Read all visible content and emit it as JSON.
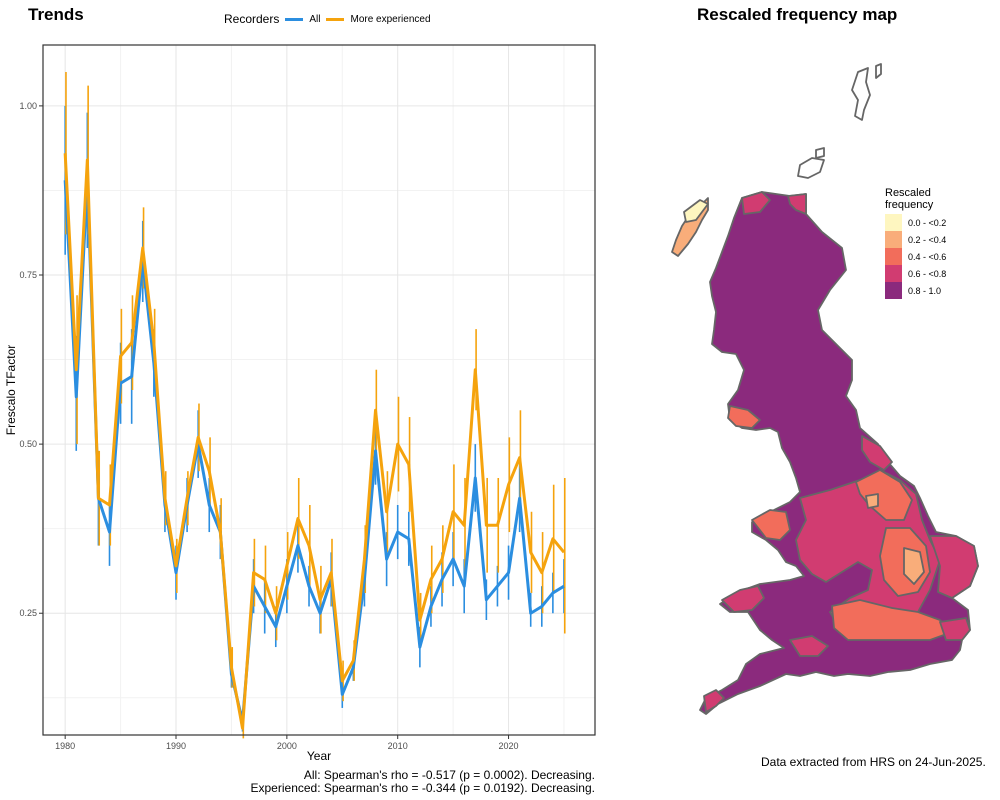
{
  "left_title": "Trends",
  "right_title": "Rescaled frequency map",
  "legend": {
    "title": "Recorders",
    "entries": [
      {
        "label": "All",
        "color": "#2b8ee0"
      },
      {
        "label": "More experienced",
        "color": "#f5a30d"
      }
    ]
  },
  "stats": {
    "line1": "All: Spearman's rho = -0.517 (p = 0.0002). Decreasing.",
    "line2": "Experienced: Spearman's rho = -0.344 (p = 0.0192). Decreasing."
  },
  "footer": "Data extracted from HRS on 24-Jun-2025.",
  "map_legend": {
    "title_line1": "Rescaled",
    "title_line2": "frequency",
    "bins": [
      {
        "label": "0.0 - <0.2",
        "color": "#fef6c0"
      },
      {
        "label": "0.2 - <0.4",
        "color": "#f9ad7a"
      },
      {
        "label": "0.4 - <0.6",
        "color": "#f26d5b"
      },
      {
        "label": "0.6 - <0.8",
        "color": "#d13c71"
      },
      {
        "label": "0.8 - 1.0",
        "color": "#8b2a7d"
      }
    ]
  },
  "chart_data": {
    "type": "line",
    "xlabel": "Year",
    "ylabel": "Frescalo TFactor",
    "xlim": [
      1978.0,
      2027.8
    ],
    "ylim": [
      0.07,
      1.09
    ],
    "xticks": [
      1980,
      1990,
      2000,
      2010,
      2020
    ],
    "yticks": [
      0.25,
      0.5,
      0.75,
      1.0
    ],
    "ytick_labels": [
      "0.25",
      "0.50",
      "0.75",
      "1.00"
    ],
    "grid": true,
    "legend_position": "top",
    "x": [
      1980,
      1981,
      1982,
      1983,
      1984,
      1985,
      1986,
      1987,
      1988,
      1989,
      1990,
      1991,
      1992,
      1993,
      1994,
      1995,
      1996,
      1997,
      1998,
      1999,
      2000,
      2001,
      2002,
      2003,
      2004,
      2005,
      2006,
      2007,
      2008,
      2009,
      2010,
      2011,
      2012,
      2013,
      2014,
      2015,
      2016,
      2017,
      2018,
      2019,
      2020,
      2021,
      2022,
      2023,
      2024,
      2025
    ],
    "series": [
      {
        "name": "All",
        "color": "#2b8ee0",
        "values": [
          0.89,
          0.57,
          0.89,
          0.42,
          0.37,
          0.59,
          0.6,
          0.77,
          0.62,
          0.41,
          0.31,
          0.41,
          0.5,
          0.41,
          0.37,
          0.16,
          0.09,
          0.29,
          0.26,
          0.23,
          0.29,
          0.35,
          0.29,
          0.25,
          0.3,
          0.13,
          0.17,
          0.3,
          0.49,
          0.33,
          0.37,
          0.36,
          0.2,
          0.26,
          0.3,
          0.33,
          0.29,
          0.45,
          0.27,
          0.29,
          0.31,
          0.42,
          0.25,
          0.26,
          0.28,
          0.29
        ],
        "lower": [
          0.78,
          0.49,
          0.79,
          0.35,
          0.32,
          0.53,
          0.53,
          0.71,
          0.57,
          0.37,
          0.27,
          0.37,
          0.45,
          0.37,
          0.33,
          0.14,
          0.075,
          0.25,
          0.22,
          0.2,
          0.25,
          0.31,
          0.26,
          0.22,
          0.26,
          0.11,
          0.15,
          0.26,
          0.44,
          0.29,
          0.33,
          0.32,
          0.17,
          0.23,
          0.26,
          0.29,
          0.25,
          0.4,
          0.24,
          0.26,
          0.27,
          0.37,
          0.23,
          0.23,
          0.25,
          0.25
        ],
        "upper": [
          1.0,
          0.66,
          0.99,
          0.49,
          0.42,
          0.65,
          0.67,
          0.83,
          0.67,
          0.45,
          0.35,
          0.45,
          0.55,
          0.45,
          0.41,
          0.18,
          0.105,
          0.33,
          0.3,
          0.26,
          0.33,
          0.39,
          0.32,
          0.28,
          0.34,
          0.15,
          0.19,
          0.34,
          0.54,
          0.37,
          0.41,
          0.4,
          0.23,
          0.29,
          0.34,
          0.37,
          0.33,
          0.5,
          0.3,
          0.32,
          0.35,
          0.47,
          0.28,
          0.29,
          0.31,
          0.33
        ]
      },
      {
        "name": "More experienced",
        "color": "#f5a30d",
        "values": [
          0.93,
          0.61,
          0.92,
          0.42,
          0.41,
          0.63,
          0.65,
          0.79,
          0.65,
          0.42,
          0.32,
          0.42,
          0.51,
          0.46,
          0.37,
          0.17,
          0.08,
          0.31,
          0.3,
          0.25,
          0.32,
          0.39,
          0.35,
          0.27,
          0.31,
          0.15,
          0.18,
          0.33,
          0.55,
          0.4,
          0.5,
          0.47,
          0.24,
          0.3,
          0.33,
          0.4,
          0.38,
          0.61,
          0.38,
          0.38,
          0.44,
          0.48,
          0.34,
          0.31,
          0.36,
          0.34
        ],
        "lower": [
          0.81,
          0.5,
          0.81,
          0.35,
          0.35,
          0.56,
          0.58,
          0.73,
          0.6,
          0.38,
          0.28,
          0.38,
          0.46,
          0.41,
          0.33,
          0.14,
          0.065,
          0.26,
          0.25,
          0.21,
          0.27,
          0.33,
          0.29,
          0.22,
          0.26,
          0.12,
          0.15,
          0.28,
          0.49,
          0.34,
          0.43,
          0.4,
          0.2,
          0.25,
          0.28,
          0.33,
          0.31,
          0.55,
          0.31,
          0.31,
          0.37,
          0.41,
          0.28,
          0.25,
          0.28,
          0.22
        ],
        "upper": [
          1.05,
          0.72,
          1.03,
          0.49,
          0.47,
          0.7,
          0.72,
          0.85,
          0.7,
          0.46,
          0.36,
          0.46,
          0.56,
          0.51,
          0.42,
          0.2,
          0.1,
          0.36,
          0.35,
          0.29,
          0.37,
          0.45,
          0.41,
          0.32,
          0.36,
          0.18,
          0.21,
          0.38,
          0.61,
          0.46,
          0.57,
          0.54,
          0.28,
          0.35,
          0.38,
          0.47,
          0.45,
          0.67,
          0.45,
          0.45,
          0.51,
          0.55,
          0.4,
          0.37,
          0.44,
          0.45
        ]
      }
    ]
  }
}
